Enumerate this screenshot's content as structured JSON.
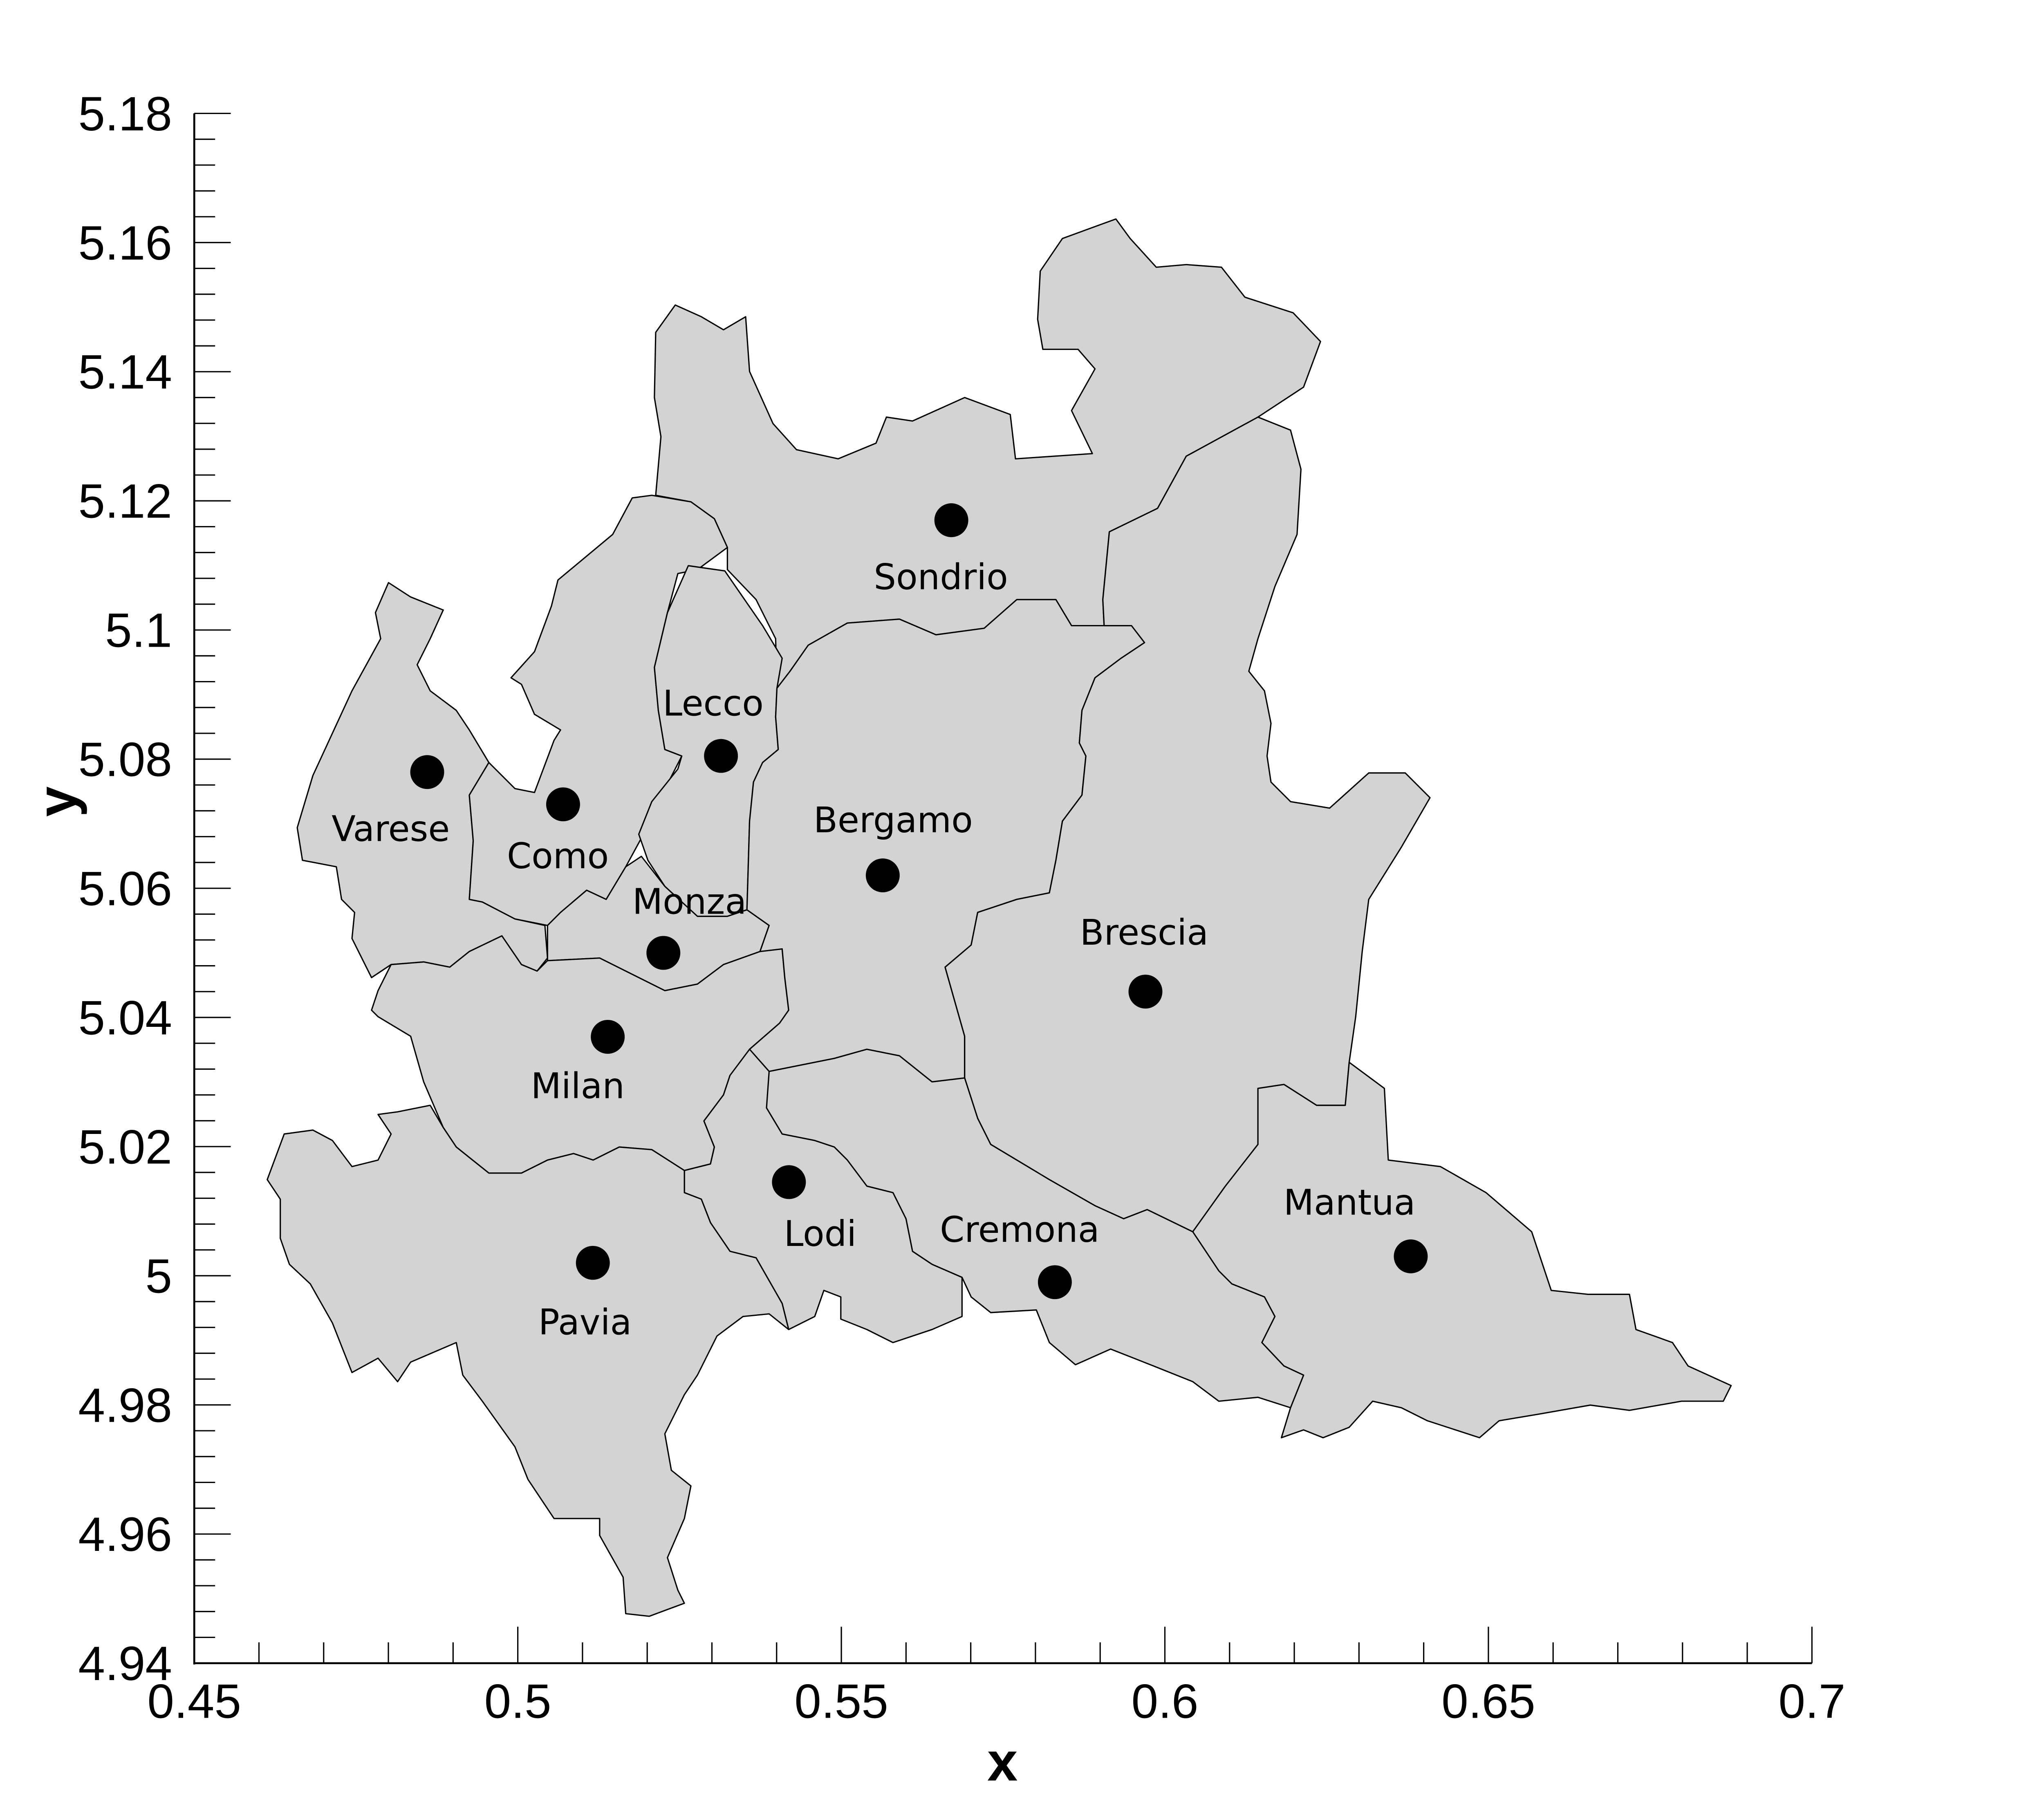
{
  "chart_data": {
    "type": "scatter",
    "xlabel": "x",
    "ylabel": "y",
    "labels": [
      "Varese",
      "Como",
      "Lecco",
      "Monza",
      "Milan",
      "Sondrio",
      "Bergamo",
      "Brescia",
      "Lodi",
      "Pavia",
      "Cremona",
      "Mantua"
    ],
    "x": [
      0.486,
      0.507,
      0.5314,
      0.5225,
      0.5139,
      0.567,
      0.5564,
      0.597,
      0.5419,
      0.5116,
      0.583,
      0.638
    ],
    "y": [
      5.078,
      5.073,
      5.0805,
      5.05,
      5.037,
      5.117,
      5.062,
      5.044,
      5.0145,
      5.002,
      4.999,
      5.003
    ],
    "color": "#000000",
    "xlim": [
      0.45,
      0.7
    ],
    "ylim": [
      4.94,
      5.18
    ],
    "xticks": [
      0.45,
      0.5,
      0.55,
      0.6,
      0.65,
      0.7
    ],
    "yticks": [
      4.94,
      4.96,
      4.98,
      5,
      5.02,
      5.04,
      5.06,
      5.08,
      5.1,
      5.12,
      5.14,
      5.16,
      5.18
    ],
    "xminorticks": [
      0.46,
      0.47,
      0.48,
      0.49,
      0.51,
      0.52,
      0.53,
      0.54,
      0.56,
      0.57,
      0.58,
      0.59,
      0.61,
      0.62,
      0.63,
      0.64,
      0.66,
      0.67,
      0.68,
      0.69
    ],
    "yminorticks": [
      4.944,
      4.948,
      4.952,
      4.956,
      4.964,
      4.968,
      4.972,
      4.976,
      4.984,
      4.988,
      4.992,
      4.996,
      5.004,
      5.008,
      5.012,
      5.016,
      5.024,
      5.028,
      5.032,
      5.036,
      5.044,
      5.048,
      5.052,
      5.056,
      5.064,
      5.068,
      5.072,
      5.076,
      5.084,
      5.088,
      5.092,
      5.096,
      5.104,
      5.108,
      5.112,
      5.116,
      5.124,
      5.128,
      5.132,
      5.136,
      5.144,
      5.148,
      5.152,
      5.156,
      5.164,
      5.168,
      5.172,
      5.176
    ]
  }
}
